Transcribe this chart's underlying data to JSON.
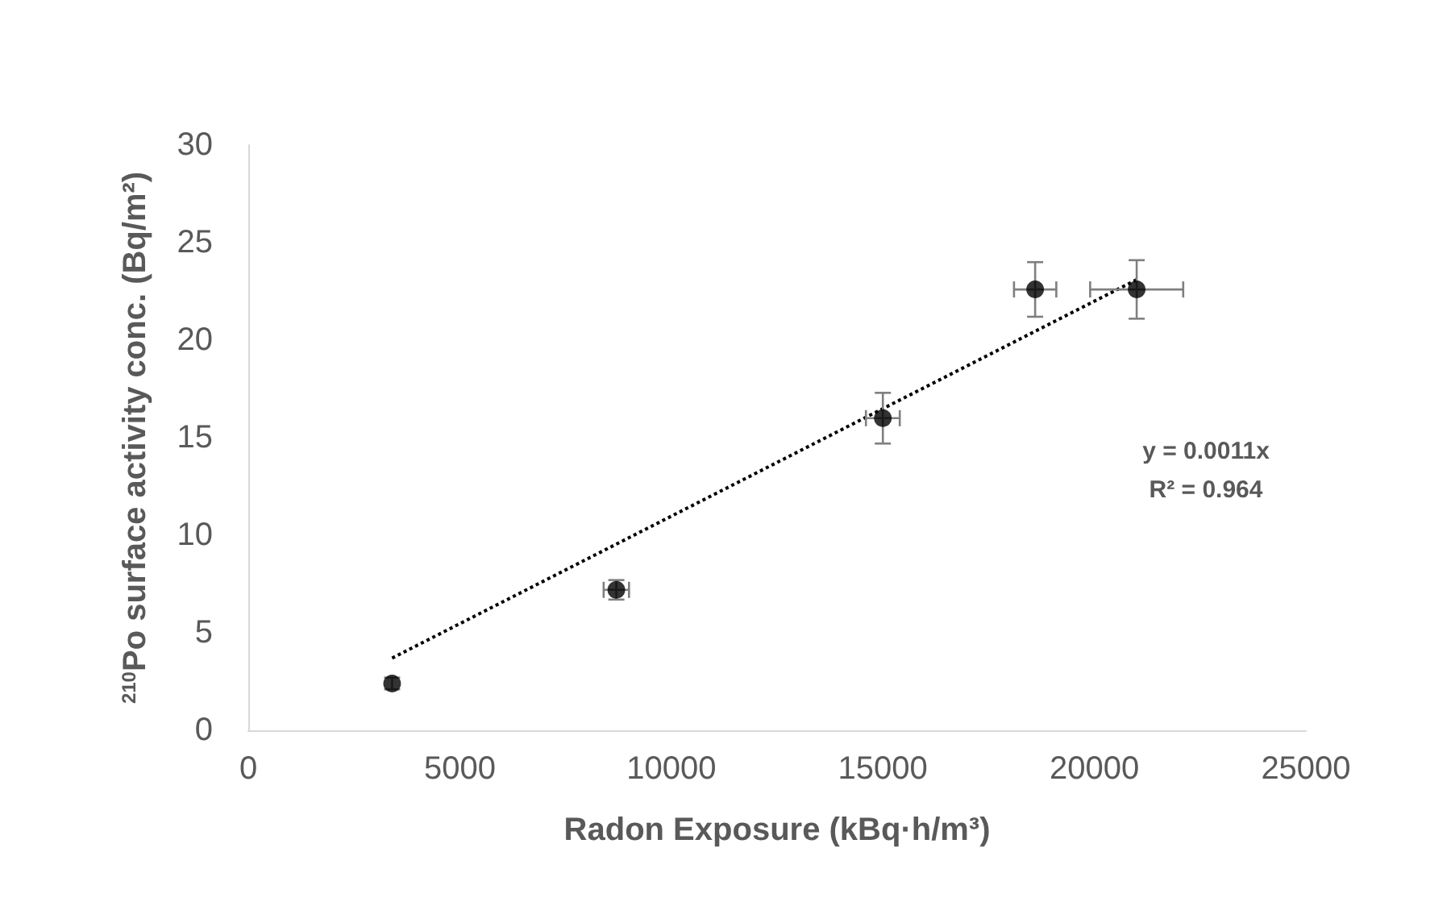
{
  "chart_data": {
    "type": "scatter",
    "xlabel": "Radon Exposure (kBq·h/m³)",
    "ylabel": "$^{210}$Po surface activity conc. (Bq/m²)",
    "xlim": [
      0,
      25000
    ],
    "xticks": [
      0,
      5000,
      10000,
      15000,
      20000,
      25000
    ],
    "ylim": [
      0,
      30
    ],
    "yticks": [
      0,
      5,
      10,
      15,
      20,
      25,
      30
    ],
    "grid": false,
    "marker": "circle",
    "series": [
      {
        "color": "#000000",
        "x": [
          3400,
          8700,
          15000,
          18600,
          21000
        ],
        "values": [
          2.4,
          7.2,
          16.0,
          22.6,
          22.6
        ],
        "errors": [
          0.3,
          0.5,
          1.3,
          1.4,
          1.5
        ],
        "xerrors": [
          null,
          300,
          400,
          500,
          1100
        ]
      },
      {
        "type": "line",
        "color": "#000000",
        "line_style": "dotted",
        "marker": "none",
        "x": [
          3400,
          21000
        ],
        "values": [
          3.7,
          23.1
        ]
      }
    ],
    "annotations": [
      "y = 0.0011x\nR² = 0.964"
    ]
  }
}
